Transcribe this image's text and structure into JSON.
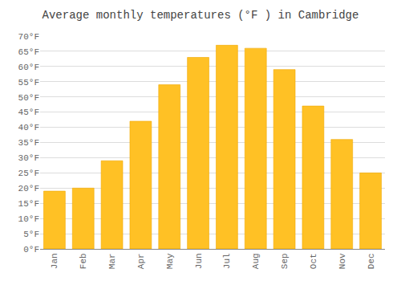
{
  "chart_data": {
    "type": "bar",
    "title": "Average monthly temperatures (°F ) in Cambridge",
    "categories": [
      "Jan",
      "Feb",
      "Mar",
      "Apr",
      "May",
      "Jun",
      "Jul",
      "Aug",
      "Sep",
      "Oct",
      "Nov",
      "Dec"
    ],
    "values": [
      19,
      20,
      29,
      42,
      54,
      63,
      67,
      66,
      59,
      47,
      36,
      25
    ],
    "color": "#FFC125",
    "ylim": [
      0,
      70
    ],
    "yticks": [
      {
        "value": 0,
        "label": "0°F"
      },
      {
        "value": 5,
        "label": "5°F"
      },
      {
        "value": 10,
        "label": "10°F"
      },
      {
        "value": 15,
        "label": "15°F"
      },
      {
        "value": 20,
        "label": "20°F"
      },
      {
        "value": 25,
        "label": "25°F"
      },
      {
        "value": 30,
        "label": "30°F"
      },
      {
        "value": 35,
        "label": "35°F"
      },
      {
        "value": 40,
        "label": "40°F"
      },
      {
        "value": 45,
        "label": "45°F"
      },
      {
        "value": 50,
        "label": "50°F"
      },
      {
        "value": 55,
        "label": "55°F"
      },
      {
        "value": 60,
        "label": "60°F"
      },
      {
        "value": 65,
        "label": "65°F"
      },
      {
        "value": 70,
        "label": "70°F"
      }
    ],
    "grid": true
  }
}
